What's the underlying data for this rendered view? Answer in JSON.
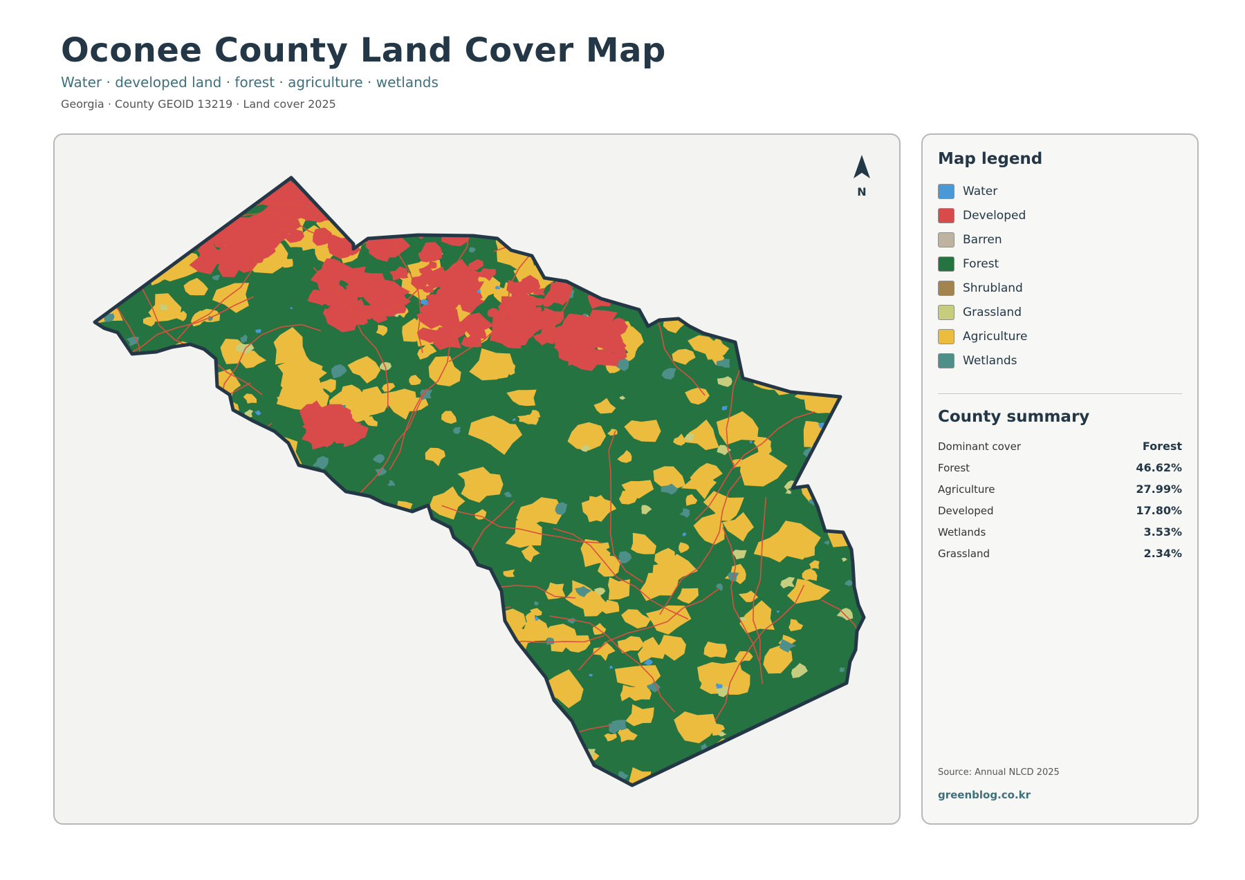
{
  "header": {
    "title": "Oconee County Land Cover Map",
    "subtitle": "Water · developed land · forest · agriculture · wetlands",
    "meta": "Georgia · County GEOID 13219 · Land cover 2025"
  },
  "map": {
    "north_label": "N",
    "colors": {
      "water": "#4a98d6",
      "developed": "#d94a4a",
      "forest": "#247341",
      "agriculture": "#ecbc3f",
      "wetlands": "#4f8f8a",
      "grassland": "#c7cd7f",
      "roads": "#d8503e",
      "outline": "#243746"
    }
  },
  "legend": {
    "title": "Map legend",
    "items": [
      {
        "label": "Water",
        "color": "#4a98d6"
      },
      {
        "label": "Developed",
        "color": "#d94a4a"
      },
      {
        "label": "Barren",
        "color": "#bdb3a0"
      },
      {
        "label": "Forest",
        "color": "#247341"
      },
      {
        "label": "Shrubland",
        "color": "#a3844f"
      },
      {
        "label": "Grassland",
        "color": "#c7cd7f"
      },
      {
        "label": "Agriculture",
        "color": "#ecbc3f"
      },
      {
        "label": "Wetlands",
        "color": "#4f8f8a"
      }
    ]
  },
  "summary": {
    "title": "County summary",
    "rows": [
      {
        "key": "Dominant cover",
        "value": "Forest"
      },
      {
        "key": "Forest",
        "value": "46.62%"
      },
      {
        "key": "Agriculture",
        "value": "27.99%"
      },
      {
        "key": "Developed",
        "value": "17.80%"
      },
      {
        "key": "Wetlands",
        "value": "3.53%"
      },
      {
        "key": "Grassland",
        "value": "2.34%"
      }
    ]
  },
  "footer": {
    "source": "Source: Annual NLCD 2025",
    "site": "greenblog.co.kr"
  }
}
